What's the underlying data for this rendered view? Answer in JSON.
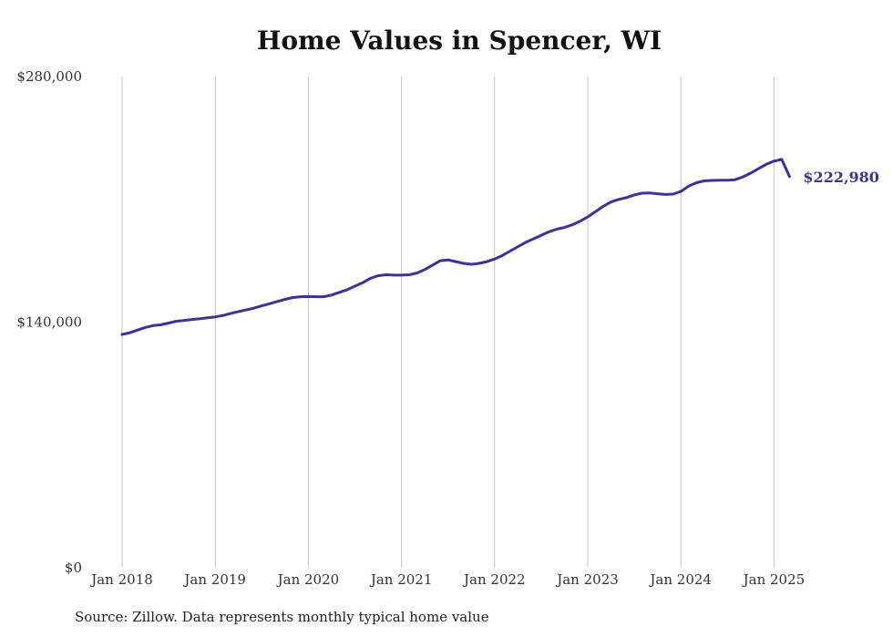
{
  "chart_data": {
    "type": "line",
    "title": "Home Values in Spencer, WI",
    "xlabel": "",
    "ylabel": "",
    "ylim": [
      0,
      280000
    ],
    "y_ticks": [
      0,
      140000,
      280000
    ],
    "y_tick_labels": [
      "$0",
      "$140,000",
      "$280,000"
    ],
    "x_ticks": [
      "Jan 2018",
      "Jan 2019",
      "Jan 2020",
      "Jan 2021",
      "Jan 2022",
      "Jan 2023",
      "Jan 2024",
      "Jan 2025"
    ],
    "grid": "vertical",
    "series": [
      {
        "color": "#3b3494",
        "end_label": "$222,980",
        "points": [
          [
            "2018-01",
            133000
          ],
          [
            "2018-02",
            134000
          ],
          [
            "2018-03",
            135500
          ],
          [
            "2018-04",
            137000
          ],
          [
            "2018-05",
            138000
          ],
          [
            "2018-06",
            138500
          ],
          [
            "2018-07",
            139500
          ],
          [
            "2018-08",
            140500
          ],
          [
            "2018-09",
            141000
          ],
          [
            "2018-10",
            141500
          ],
          [
            "2018-11",
            142000
          ],
          [
            "2018-12",
            142500
          ],
          [
            "2019-01",
            143000
          ],
          [
            "2019-02",
            143800
          ],
          [
            "2019-03",
            145000
          ],
          [
            "2019-04",
            146000
          ],
          [
            "2019-05",
            147000
          ],
          [
            "2019-06",
            148000
          ],
          [
            "2019-07",
            149300
          ],
          [
            "2019-08",
            150500
          ],
          [
            "2019-09",
            151800
          ],
          [
            "2019-10",
            153000
          ],
          [
            "2019-11",
            154000
          ],
          [
            "2019-12",
            154500
          ],
          [
            "2020-01",
            154600
          ],
          [
            "2020-02",
            154500
          ],
          [
            "2020-03",
            154500
          ],
          [
            "2020-04",
            155500
          ],
          [
            "2020-05",
            157000
          ],
          [
            "2020-06",
            158500
          ],
          [
            "2020-07",
            160500
          ],
          [
            "2020-08",
            162500
          ],
          [
            "2020-09",
            165000
          ],
          [
            "2020-10",
            166500
          ],
          [
            "2020-11",
            167000
          ],
          [
            "2020-12",
            166800
          ],
          [
            "2021-01",
            166800
          ],
          [
            "2021-02",
            167000
          ],
          [
            "2021-03",
            168000
          ],
          [
            "2021-04",
            170000
          ],
          [
            "2021-05",
            172500
          ],
          [
            "2021-06",
            175000
          ],
          [
            "2021-07",
            175500
          ],
          [
            "2021-08",
            174500
          ],
          [
            "2021-09",
            173500
          ],
          [
            "2021-10",
            173000
          ],
          [
            "2021-11",
            173500
          ],
          [
            "2021-12",
            174500
          ],
          [
            "2022-01",
            176000
          ],
          [
            "2022-02",
            178000
          ],
          [
            "2022-03",
            180500
          ],
          [
            "2022-04",
            183000
          ],
          [
            "2022-05",
            185500
          ],
          [
            "2022-06",
            187500
          ],
          [
            "2022-07",
            189500
          ],
          [
            "2022-08",
            191500
          ],
          [
            "2022-09",
            193000
          ],
          [
            "2022-10",
            194000
          ],
          [
            "2022-11",
            195500
          ],
          [
            "2022-12",
            197500
          ],
          [
            "2023-01",
            200000
          ],
          [
            "2023-02",
            203000
          ],
          [
            "2023-03",
            206000
          ],
          [
            "2023-04",
            208500
          ],
          [
            "2023-05",
            210000
          ],
          [
            "2023-06",
            211000
          ],
          [
            "2023-07",
            212500
          ],
          [
            "2023-08",
            213500
          ],
          [
            "2023-09",
            213600
          ],
          [
            "2023-10",
            213200
          ],
          [
            "2023-11",
            212800
          ],
          [
            "2023-12",
            213000
          ],
          [
            "2024-01",
            214500
          ],
          [
            "2024-02",
            217500
          ],
          [
            "2024-03",
            219500
          ],
          [
            "2024-04",
            220500
          ],
          [
            "2024-05",
            220800
          ],
          [
            "2024-06",
            220900
          ],
          [
            "2024-07",
            220900
          ],
          [
            "2024-08",
            221200
          ],
          [
            "2024-09",
            222800
          ],
          [
            "2024-10",
            225000
          ],
          [
            "2024-11",
            227500
          ],
          [
            "2024-12",
            230000
          ],
          [
            "2025-01",
            231800
          ],
          [
            "2025-02",
            232800
          ],
          [
            "2025-03",
            222980
          ]
        ]
      }
    ]
  },
  "source_note": "Source: Zillow. Data represents monthly typical home value"
}
